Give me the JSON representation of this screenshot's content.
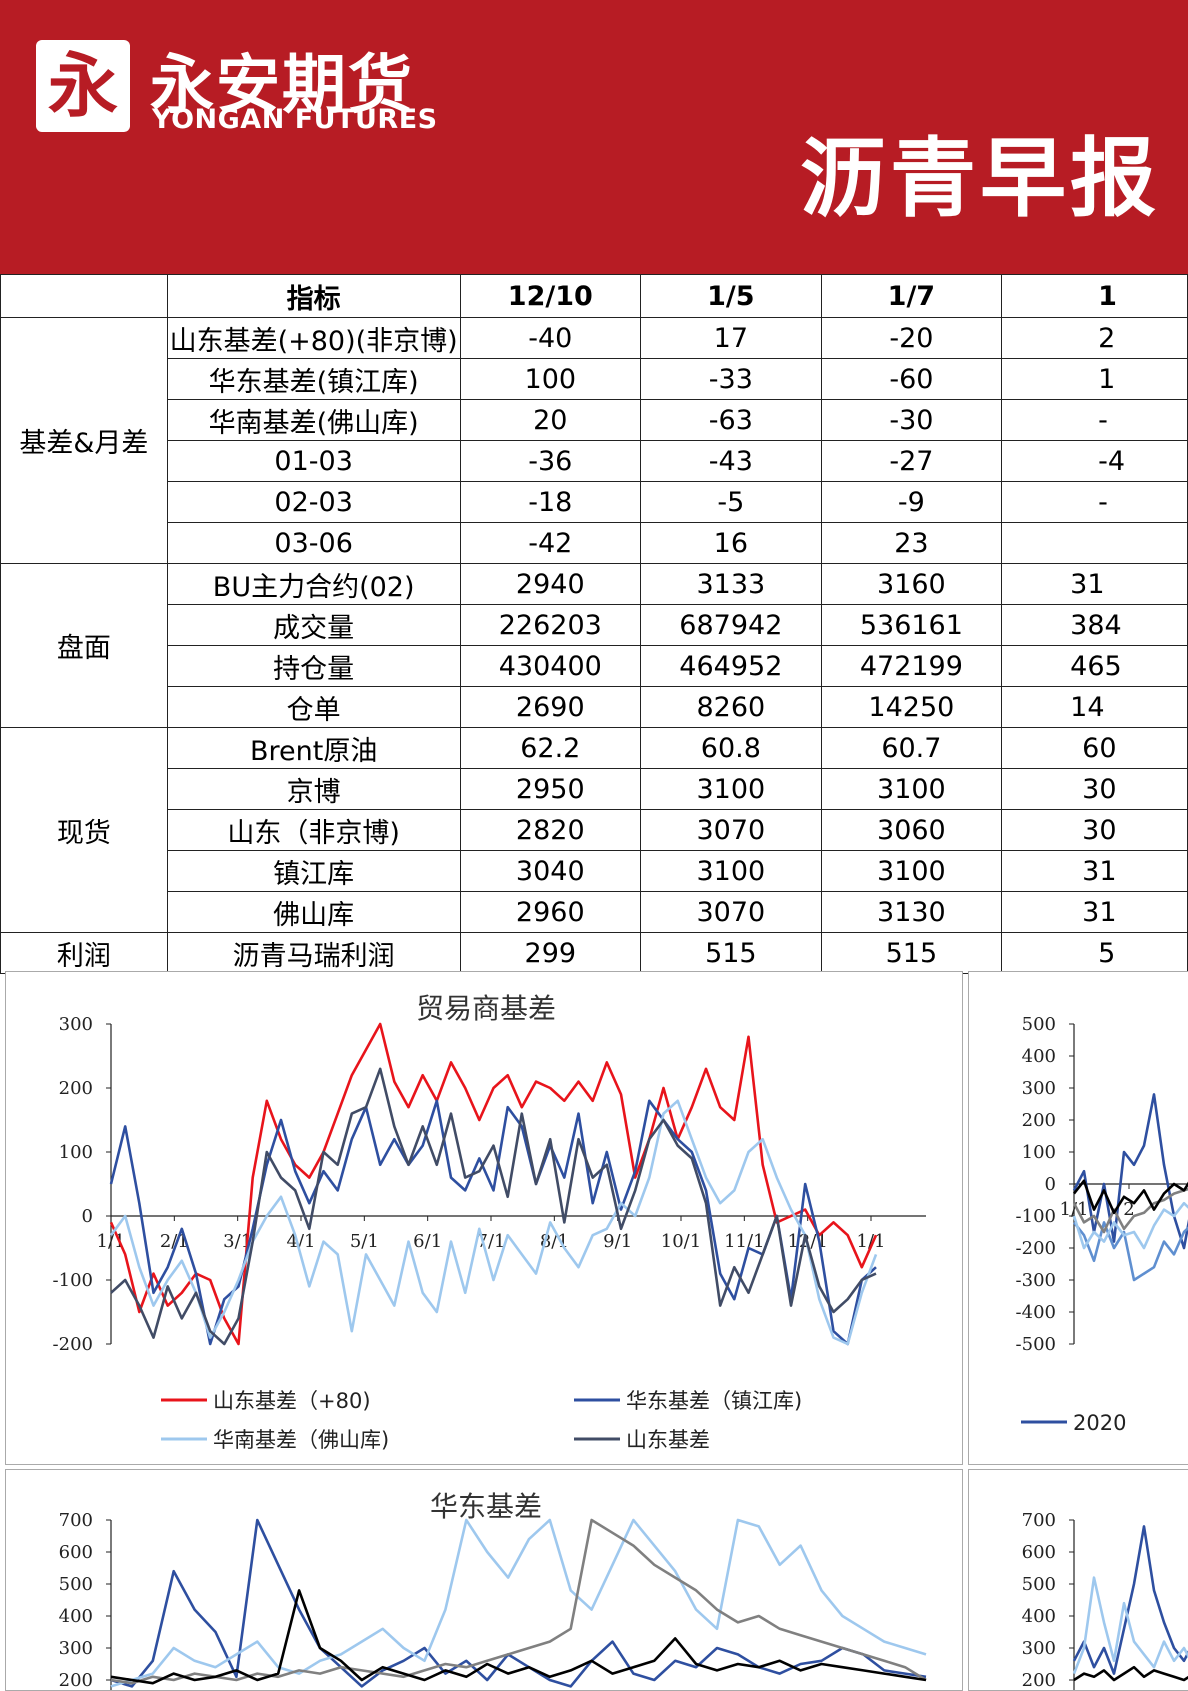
{
  "header": {
    "logo_glyph": "永",
    "brand_cn": "永安期货",
    "brand_en": "YONGAN FUTURES",
    "report_title": "沥青早报"
  },
  "table": {
    "head": {
      "indicator": "指标",
      "dates": [
        "12/10",
        "1/5",
        "1/7",
        "1"
      ]
    },
    "groups": [
      {
        "name": "基差&月差",
        "rows": [
          {
            "label": "山东基差(+80)(非京博)",
            "values": [
              "-40",
              "17",
              "-20",
              "2"
            ]
          },
          {
            "label": "华东基差(镇江库)",
            "values": [
              "100",
              "-33",
              "-60",
              "1"
            ]
          },
          {
            "label": "华南基差(佛山库)",
            "values": [
              "20",
              "-63",
              "-30",
              "-"
            ]
          },
          {
            "label": "01-03",
            "values": [
              "-36",
              "-43",
              "-27",
              "-4"
            ]
          },
          {
            "label": "02-03",
            "values": [
              "-18",
              "-5",
              "-9",
              "-"
            ]
          },
          {
            "label": "03-06",
            "values": [
              "-42",
              "16",
              "23",
              ""
            ]
          }
        ]
      },
      {
        "name": "盘面",
        "rows": [
          {
            "label": "BU主力合约(02)",
            "values": [
              "2940",
              "3133",
              "3160",
              "31"
            ]
          },
          {
            "label": "成交量",
            "values": [
              "226203",
              "687942",
              "536161",
              "384"
            ]
          },
          {
            "label": "持仓量",
            "values": [
              "430400",
              "464952",
              "472199",
              "465"
            ]
          },
          {
            "label": "仓单",
            "values": [
              "2690",
              "8260",
              "14250",
              "14"
            ]
          }
        ]
      },
      {
        "name": "现货",
        "rows": [
          {
            "label": "Brent原油",
            "values": [
              "62.2",
              "60.8",
              "60.7",
              "60"
            ]
          },
          {
            "label": "京博",
            "values": [
              "2950",
              "3100",
              "3100",
              "30"
            ]
          },
          {
            "label": "山东（非京博)",
            "values": [
              "2820",
              "3070",
              "3060",
              "30"
            ]
          },
          {
            "label": "镇江库",
            "values": [
              "3040",
              "3100",
              "3100",
              "31"
            ]
          },
          {
            "label": "佛山库",
            "values": [
              "2960",
              "3070",
              "3130",
              "31"
            ]
          }
        ]
      },
      {
        "name": "利润",
        "rows": [
          {
            "label": "沥青马瑞利润",
            "values": [
              "299",
              "515",
              "515",
              "5"
            ]
          }
        ]
      }
    ]
  },
  "chart_data": [
    {
      "type": "line",
      "title": "贸易商基差",
      "ylim": [
        -200,
        300
      ],
      "yticks": [
        "300",
        "200",
        "100",
        "0",
        "-100",
        "-200"
      ],
      "xticks": [
        "1/1",
        "2/1",
        "3/1",
        "4/1",
        "5/1",
        "6/1",
        "7/1",
        "8/1",
        "9/1",
        "10/1",
        "11/1",
        "12/1",
        "1/1"
      ],
      "series": [
        {
          "name": "山东基差（+80)",
          "color": "#e8141b",
          "values": [
            -10,
            -60,
            -150,
            -90,
            -140,
            -120,
            -90,
            -100,
            -160,
            -200,
            60,
            180,
            120,
            80,
            60,
            100,
            160,
            220,
            260,
            300,
            210,
            170,
            220,
            180,
            240,
            200,
            150,
            200,
            220,
            170,
            210,
            200,
            180,
            210,
            180,
            240,
            190,
            60,
            120,
            200,
            120,
            170,
            230,
            170,
            150,
            280,
            80,
            -10,
            0,
            10,
            -30,
            -10,
            -30,
            -80,
            -30
          ]
        },
        {
          "name": "华东基差（镇江库)",
          "color": "#2e4fa0",
          "values": [
            50,
            140,
            20,
            -120,
            -80,
            -20,
            -90,
            -200,
            -130,
            -110,
            -20,
            80,
            150,
            70,
            20,
            70,
            40,
            120,
            170,
            80,
            120,
            80,
            110,
            180,
            60,
            40,
            90,
            40,
            170,
            140,
            50,
            110,
            60,
            160,
            20,
            100,
            10,
            70,
            180,
            150,
            120,
            100,
            40,
            -90,
            -130,
            -50,
            -60,
            0,
            -130,
            50,
            -40,
            -180,
            -200,
            -100,
            -80
          ]
        },
        {
          "name": "华南基差（佛山库)",
          "color": "#9ec8ee",
          "values": [
            -30,
            0,
            -80,
            -140,
            -100,
            -70,
            -120,
            -190,
            -150,
            -100,
            -40,
            0,
            30,
            -30,
            -110,
            -40,
            -60,
            -180,
            -60,
            -100,
            -140,
            -40,
            -120,
            -150,
            -40,
            -120,
            -20,
            -100,
            -30,
            -60,
            -90,
            -10,
            -50,
            -80,
            -30,
            -20,
            20,
            0,
            60,
            160,
            180,
            120,
            60,
            20,
            40,
            100,
            120,
            60,
            10,
            -30,
            -130,
            -190,
            -200,
            -120,
            -60
          ]
        },
        {
          "name": "山东基差",
          "color": "#414c66",
          "values": [
            -120,
            -100,
            -140,
            -190,
            -110,
            -160,
            -120,
            -180,
            -200,
            -160,
            -40,
            100,
            60,
            40,
            -20,
            100,
            80,
            160,
            170,
            230,
            140,
            80,
            140,
            80,
            160,
            60,
            70,
            110,
            30,
            160,
            50,
            120,
            -10,
            120,
            60,
            80,
            -20,
            40,
            120,
            150,
            110,
            90,
            20,
            -140,
            -80,
            -120,
            -60,
            0,
            -140,
            -30,
            -110,
            -150,
            -130,
            -100,
            -90
          ]
        }
      ]
    },
    {
      "type": "line",
      "title": "",
      "ylim": [
        -500,
        500
      ],
      "yticks": [
        "500",
        "400",
        "300",
        "200",
        "100",
        "0",
        "-100",
        "-200",
        "-300",
        "-400",
        "-500"
      ],
      "xticks": [
        "1/1",
        "2"
      ],
      "series": [
        {
          "name": "2020",
          "color": "#2e4fa0",
          "values": [
            -20,
            40,
            -150,
            0,
            -180,
            100,
            60,
            120,
            280,
            60,
            -100,
            -200,
            -30,
            0
          ]
        },
        {
          "name": "",
          "color": "#5f8fd0",
          "values": [
            -120,
            -160,
            -240,
            -120,
            -200,
            -150,
            -300,
            -280,
            -260,
            -180,
            -220,
            -150,
            -120,
            -80
          ]
        },
        {
          "name": "",
          "color": "#9ec8ee",
          "values": [
            -100,
            -200,
            -150,
            -180,
            -120,
            -160,
            -150,
            -200,
            -130,
            -80,
            -100,
            -60,
            -90,
            -40
          ]
        },
        {
          "name": "",
          "color": "#808080",
          "values": [
            -60,
            -120,
            -100,
            -150,
            -80,
            -140,
            -100,
            -90,
            -60,
            -50,
            -30,
            -20,
            -10,
            0
          ]
        },
        {
          "name": "",
          "color": "#000000",
          "values": [
            -30,
            10,
            -80,
            -20,
            -90,
            -40,
            -60,
            -20,
            -80,
            -30,
            0,
            -20,
            30,
            -10
          ]
        }
      ]
    },
    {
      "type": "line",
      "title": "华东基差",
      "ylim": [
        100,
        700
      ],
      "yticks": [
        "700",
        "600",
        "500",
        "400",
        "300",
        "200"
      ],
      "xticks": [],
      "series": [
        {
          "name": "",
          "color": "#2e4fa0",
          "values": [
            200,
            180,
            260,
            540,
            420,
            350,
            210,
            700,
            560,
            420,
            300,
            240,
            180,
            230,
            260,
            300,
            220,
            260,
            200,
            280,
            240,
            200,
            180,
            260,
            320,
            220,
            200,
            260,
            240,
            300,
            280,
            240,
            220,
            250,
            260,
            300,
            280,
            230,
            220,
            210
          ]
        },
        {
          "name": "",
          "color": "#9ec8ee",
          "values": [
            180,
            200,
            220,
            300,
            260,
            240,
            280,
            320,
            240,
            220,
            260,
            280,
            320,
            360,
            300,
            260,
            420,
            700,
            600,
            520,
            640,
            700,
            480,
            420,
            560,
            700,
            620,
            540,
            420,
            360,
            700,
            680,
            560,
            620,
            480,
            400,
            360,
            320,
            300,
            280
          ]
        },
        {
          "name": "",
          "color": "#808080",
          "values": [
            200,
            190,
            210,
            200,
            220,
            210,
            200,
            220,
            210,
            230,
            220,
            240,
            230,
            220,
            210,
            230,
            250,
            240,
            260,
            280,
            300,
            320,
            360,
            700,
            660,
            620,
            560,
            520,
            480,
            420,
            380,
            400,
            360,
            340,
            320,
            300,
            280,
            260,
            240,
            200
          ]
        },
        {
          "name": "",
          "color": "#000000",
          "values": [
            210,
            200,
            190,
            220,
            200,
            210,
            230,
            200,
            220,
            480,
            300,
            260,
            200,
            240,
            220,
            200,
            230,
            210,
            250,
            220,
            240,
            210,
            230,
            260,
            220,
            240,
            260,
            330,
            250,
            230,
            250,
            240,
            260,
            230,
            250,
            240,
            230,
            220,
            210,
            200
          ]
        }
      ]
    },
    {
      "type": "line",
      "title": "",
      "ylim": [
        100,
        700
      ],
      "yticks": [
        "700",
        "600",
        "500",
        "400",
        "300",
        "200"
      ],
      "xticks": [],
      "series": [
        {
          "name": "",
          "color": "#2e4fa0",
          "values": [
            260,
            320,
            240,
            300,
            220,
            360,
            500,
            680,
            480,
            380,
            300,
            260,
            320,
            280
          ]
        },
        {
          "name": "",
          "color": "#9ec8ee",
          "values": [
            220,
            300,
            520,
            380,
            260,
            440,
            320,
            280,
            240,
            320,
            260,
            300,
            240,
            220
          ]
        },
        {
          "name": "",
          "color": "#000000",
          "values": [
            200,
            220,
            210,
            230,
            200,
            220,
            240,
            210,
            230,
            220,
            210,
            200,
            220,
            210
          ]
        }
      ]
    }
  ]
}
